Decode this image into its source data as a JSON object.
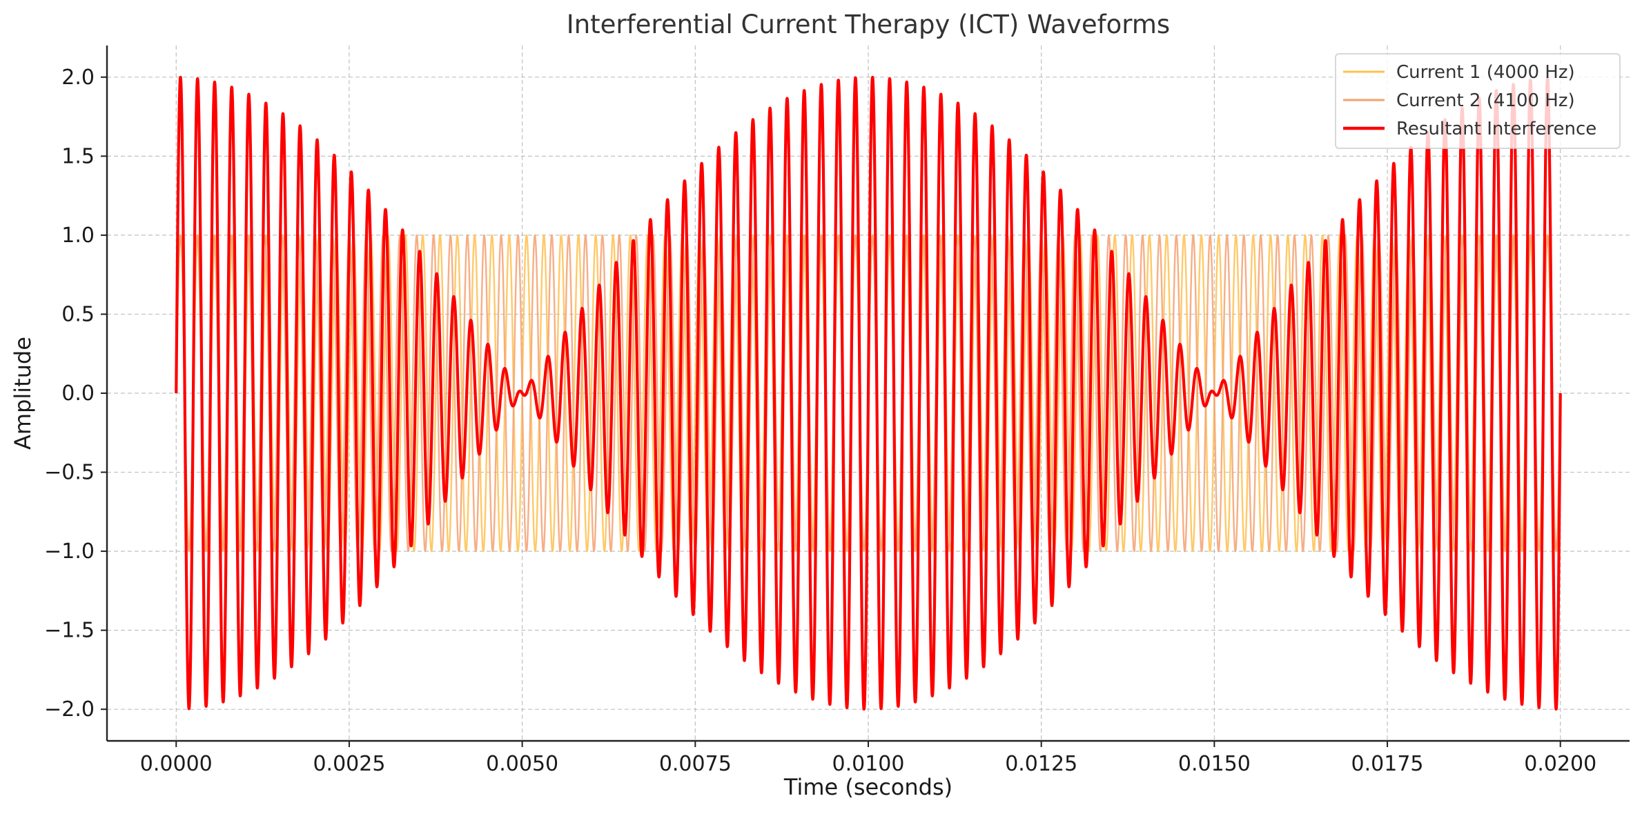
{
  "chart_data": {
    "type": "line",
    "title": "Interferential Current Therapy (ICT) Waveforms",
    "xlabel": "Time (seconds)",
    "ylabel": "Amplitude",
    "xlim": [
      -0.001,
      0.021
    ],
    "ylim": [
      -2.2,
      2.2
    ],
    "x_ticks": [
      0.0,
      0.0025,
      0.005,
      0.0075,
      0.01,
      0.0125,
      0.015,
      0.0175,
      0.02
    ],
    "x_tick_labels": [
      "0.0000",
      "0.0025",
      "0.0050",
      "0.0075",
      "0.0100",
      "0.0125",
      "0.0150",
      "0.0175",
      "0.0200"
    ],
    "y_ticks": [
      2.0,
      1.5,
      1.0,
      0.5,
      0.0,
      -0.5,
      -1.0,
      -1.5,
      -2.0
    ],
    "y_tick_labels": [
      "2.0",
      "1.5",
      "1.0",
      "0.5",
      "0.0",
      "−0.5",
      "−1.0",
      "−1.5",
      "−2.0"
    ],
    "grid": true,
    "legend_position": "top-right",
    "time_range": [
      0.0,
      0.02
    ],
    "series": [
      {
        "name": "Current 1 (4000 Hz)",
        "frequency_hz": 4000,
        "amplitude": 1.0,
        "function": "sin",
        "color": "#FFC04D",
        "role": "carrier"
      },
      {
        "name": "Current 2 (4100 Hz)",
        "frequency_hz": 4100,
        "amplitude": 1.0,
        "function": "sin",
        "color": "#F4A070",
        "role": "carrier"
      },
      {
        "name": "Resultant Interference",
        "frequency_hz": null,
        "amplitude": 2.0,
        "function": "sum",
        "color": "#FF0000",
        "role": "resultant"
      }
    ]
  }
}
